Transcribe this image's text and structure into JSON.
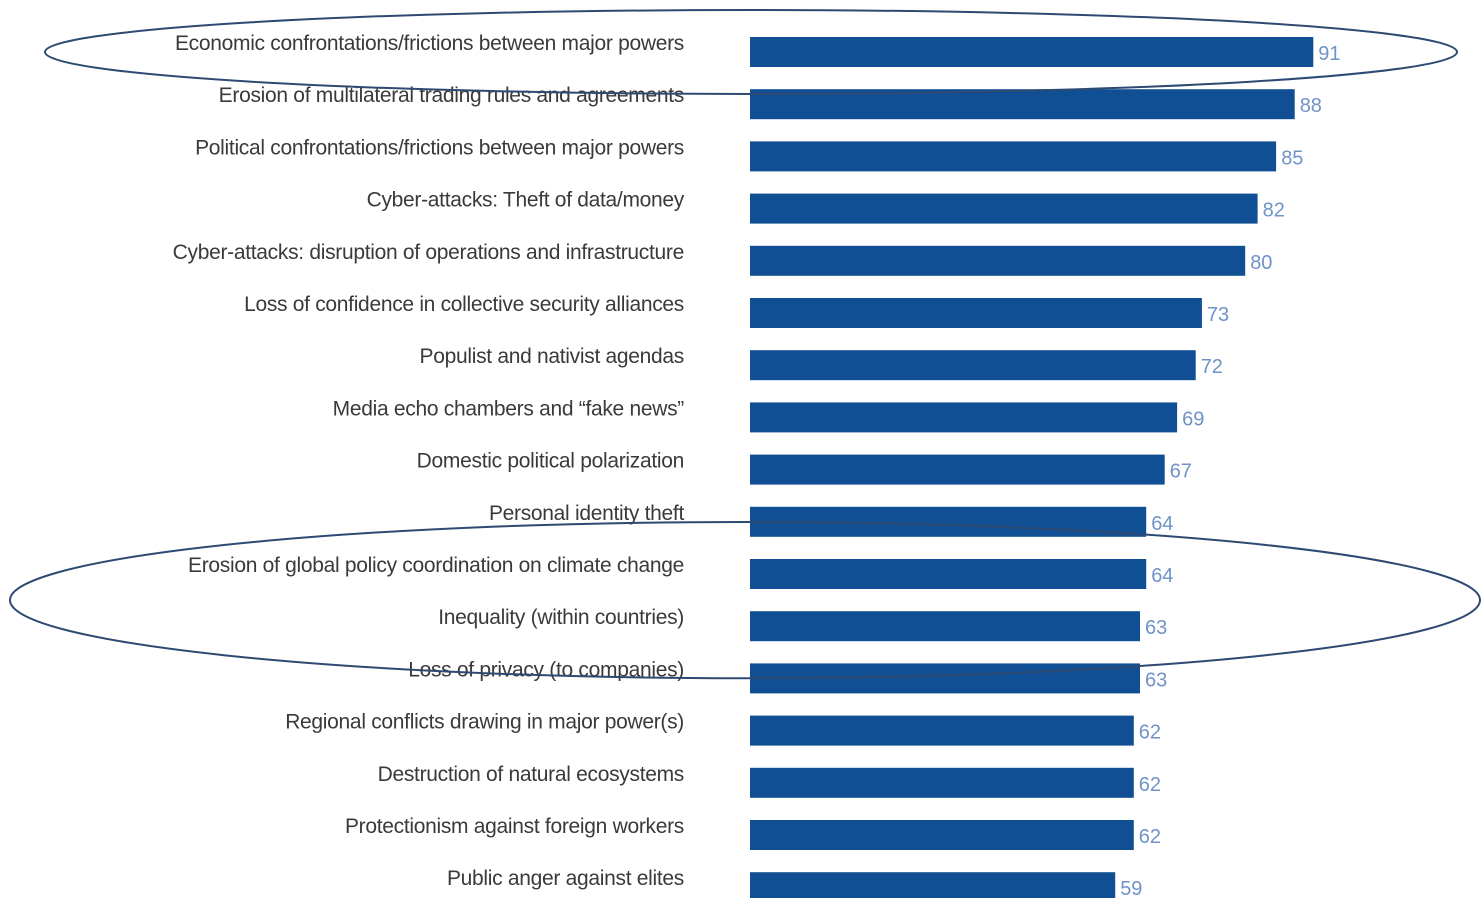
{
  "colors": {
    "bar": "#114f95",
    "value_label": "#6f93c7",
    "category_label": "#3a3a3a",
    "highlight_ellipse": "#2d4a73"
  },
  "chart_data": {
    "type": "bar",
    "orientation": "horizontal",
    "title": "",
    "xlabel": "",
    "ylabel": "",
    "xlim": [
      0,
      100
    ],
    "grid": false,
    "legend": "none",
    "categories": [
      "Economic confrontations/frictions between major powers",
      "Erosion of multilateral trading rules and agreements",
      "Political confrontations/frictions between major powers",
      "Cyber-attacks: Theft of data/money",
      "Cyber-attacks: disruption of operations and infrastructure",
      "Loss of confidence in collective security alliances",
      "Populist and nativist agendas",
      "Media echo chambers and “fake news”",
      "Domestic political polarization",
      "Personal identity theft",
      "Erosion of global policy coordination on climate change",
      "Inequality (within countries)",
      "Loss of privacy (to companies)",
      "Regional conflicts drawing in major power(s)",
      "Destruction of natural ecosystems",
      "Protectionism against foreign workers",
      "Public anger against elites"
    ],
    "values": [
      91,
      88,
      85,
      82,
      80,
      73,
      72,
      69,
      67,
      64,
      64,
      63,
      63,
      62,
      62,
      62,
      59
    ],
    "annotations": [
      {
        "type": "highlight-ellipse",
        "items": [
          0
        ]
      },
      {
        "type": "highlight-ellipse",
        "items": [
          10,
          11
        ]
      }
    ]
  }
}
